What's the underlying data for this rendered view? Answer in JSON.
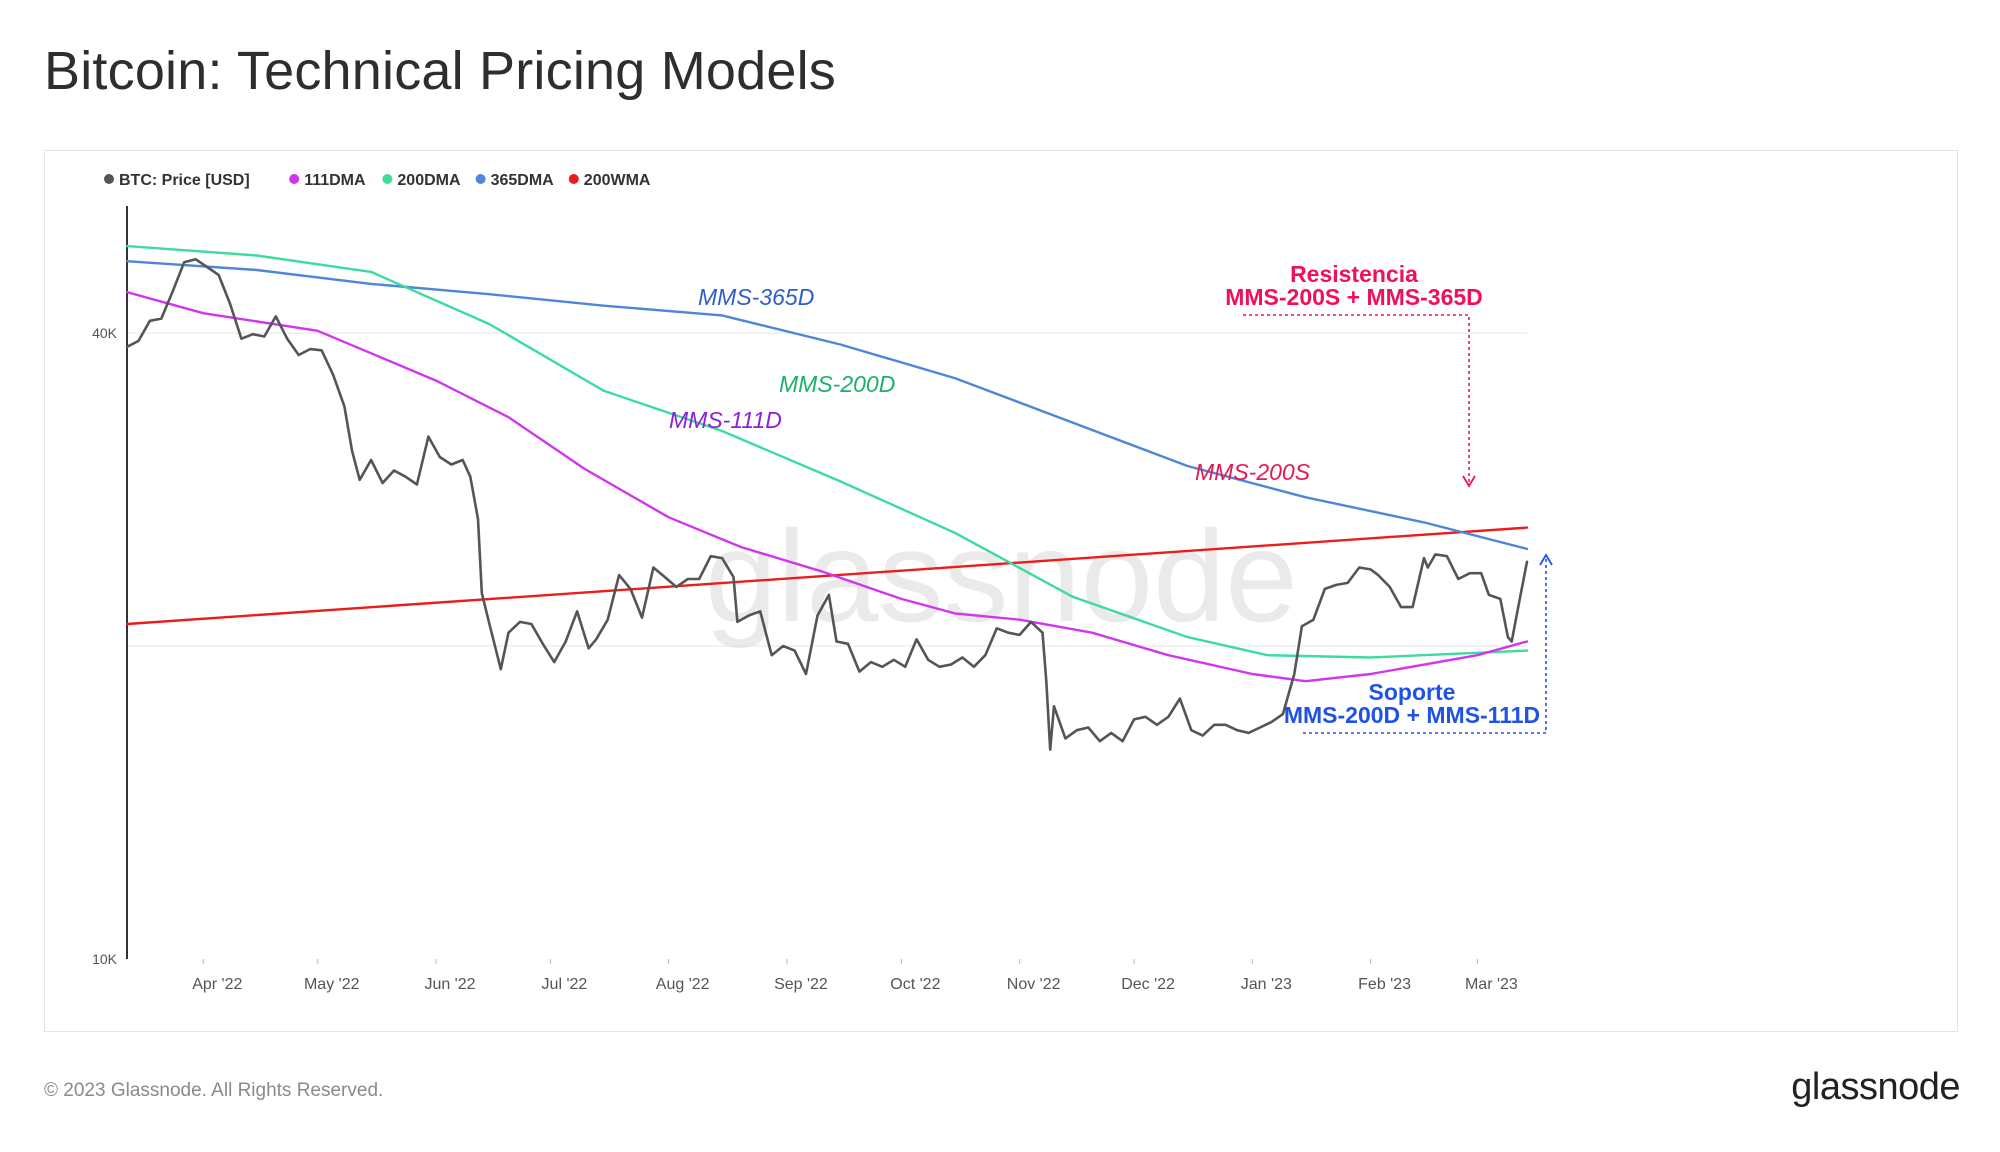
{
  "page": {
    "title": "Bitcoin: Technical Pricing Models",
    "copyright": "© 2023 Glassnode. All Rights Reserved.",
    "logo": "glassnode",
    "watermark": "glassnode"
  },
  "chart_data": {
    "type": "line",
    "title": "Bitcoin: Technical Pricing Models",
    "y_scale": "log",
    "ylim": [
      10000,
      53000
    ],
    "y_ticks": [
      {
        "value": 40000,
        "label": "40K"
      },
      {
        "value": 10000,
        "label": "10K"
      }
    ],
    "y_gridlines": [
      40000,
      20000
    ],
    "x_ticks": [
      "Apr '22",
      "May '22",
      "Jun '22",
      "Jul '22",
      "Aug '22",
      "Sep '22",
      "Oct '22",
      "Nov '22",
      "Dec '22",
      "Jan '23",
      "Feb '23",
      "Mar '23"
    ],
    "x_range": [
      "2022-03-12",
      "2023-03-14"
    ],
    "legend": {
      "placement": "top-left",
      "items": [
        {
          "label": "BTC: Price [USD]",
          "color": "#555555"
        },
        {
          "label": "111DMA",
          "color": "#d136ee"
        },
        {
          "label": "200DMA",
          "color": "#3ddb9c"
        },
        {
          "label": "365DMA",
          "color": "#4f86d8"
        },
        {
          "label": "200WMA",
          "color": "#ee1b1b"
        }
      ]
    },
    "series": [
      {
        "name": "BTC: Price [USD]",
        "color": "#555555",
        "points": [
          [
            "2022-03-12",
            38800
          ],
          [
            "2022-03-15",
            39300
          ],
          [
            "2022-03-18",
            41100
          ],
          [
            "2022-03-21",
            41300
          ],
          [
            "2022-03-24",
            43900
          ],
          [
            "2022-03-27",
            46800
          ],
          [
            "2022-03-30",
            47100
          ],
          [
            "2022-04-02",
            46300
          ],
          [
            "2022-04-05",
            45500
          ],
          [
            "2022-04-08",
            42700
          ],
          [
            "2022-04-11",
            39500
          ],
          [
            "2022-04-14",
            39900
          ],
          [
            "2022-04-17",
            39700
          ],
          [
            "2022-04-20",
            41500
          ],
          [
            "2022-04-23",
            39500
          ],
          [
            "2022-04-26",
            38100
          ],
          [
            "2022-04-29",
            38600
          ],
          [
            "2022-05-02",
            38500
          ],
          [
            "2022-05-05",
            36500
          ],
          [
            "2022-05-08",
            34000
          ],
          [
            "2022-05-10",
            30800
          ],
          [
            "2022-05-12",
            28900
          ],
          [
            "2022-05-15",
            30200
          ],
          [
            "2022-05-18",
            28700
          ],
          [
            "2022-05-21",
            29500
          ],
          [
            "2022-05-24",
            29100
          ],
          [
            "2022-05-27",
            28600
          ],
          [
            "2022-05-30",
            31800
          ],
          [
            "2022-06-02",
            30400
          ],
          [
            "2022-06-05",
            29900
          ],
          [
            "2022-06-08",
            30200
          ],
          [
            "2022-06-10",
            29100
          ],
          [
            "2022-06-12",
            26500
          ],
          [
            "2022-06-13",
            22500
          ],
          [
            "2022-06-15",
            21000
          ],
          [
            "2022-06-18",
            19000
          ],
          [
            "2022-06-20",
            20600
          ],
          [
            "2022-06-23",
            21100
          ],
          [
            "2022-06-26",
            21000
          ],
          [
            "2022-06-29",
            20100
          ],
          [
            "2022-07-02",
            19300
          ],
          [
            "2022-07-05",
            20200
          ],
          [
            "2022-07-08",
            21600
          ],
          [
            "2022-07-11",
            19900
          ],
          [
            "2022-07-13",
            20300
          ],
          [
            "2022-07-16",
            21200
          ],
          [
            "2022-07-19",
            23400
          ],
          [
            "2022-07-22",
            22700
          ],
          [
            "2022-07-25",
            21300
          ],
          [
            "2022-07-28",
            23800
          ],
          [
            "2022-07-31",
            23300
          ],
          [
            "2022-08-03",
            22800
          ],
          [
            "2022-08-06",
            23200
          ],
          [
            "2022-08-09",
            23200
          ],
          [
            "2022-08-12",
            24400
          ],
          [
            "2022-08-15",
            24300
          ],
          [
            "2022-08-18",
            23300
          ],
          [
            "2022-08-19",
            21100
          ],
          [
            "2022-08-22",
            21400
          ],
          [
            "2022-08-25",
            21600
          ],
          [
            "2022-08-28",
            19600
          ],
          [
            "2022-08-31",
            20000
          ],
          [
            "2022-09-03",
            19800
          ],
          [
            "2022-09-06",
            18800
          ],
          [
            "2022-09-09",
            21400
          ],
          [
            "2022-09-12",
            22400
          ],
          [
            "2022-09-14",
            20200
          ],
          [
            "2022-09-17",
            20100
          ],
          [
            "2022-09-20",
            18900
          ],
          [
            "2022-09-23",
            19300
          ],
          [
            "2022-09-26",
            19100
          ],
          [
            "2022-09-29",
            19400
          ],
          [
            "2022-10-02",
            19100
          ],
          [
            "2022-10-05",
            20300
          ],
          [
            "2022-10-08",
            19400
          ],
          [
            "2022-10-11",
            19100
          ],
          [
            "2022-10-14",
            19200
          ],
          [
            "2022-10-17",
            19500
          ],
          [
            "2022-10-20",
            19100
          ],
          [
            "2022-10-23",
            19600
          ],
          [
            "2022-10-26",
            20800
          ],
          [
            "2022-10-29",
            20600
          ],
          [
            "2022-11-01",
            20500
          ],
          [
            "2022-11-04",
            21100
          ],
          [
            "2022-11-07",
            20600
          ],
          [
            "2022-11-08",
            18500
          ],
          [
            "2022-11-09",
            15900
          ],
          [
            "2022-11-10",
            17500
          ],
          [
            "2022-11-13",
            16300
          ],
          [
            "2022-11-16",
            16600
          ],
          [
            "2022-11-19",
            16700
          ],
          [
            "2022-11-22",
            16200
          ],
          [
            "2022-11-25",
            16500
          ],
          [
            "2022-11-28",
            16200
          ],
          [
            "2022-12-01",
            17000
          ],
          [
            "2022-12-04",
            17100
          ],
          [
            "2022-12-07",
            16800
          ],
          [
            "2022-12-10",
            17100
          ],
          [
            "2022-12-13",
            17800
          ],
          [
            "2022-12-16",
            16600
          ],
          [
            "2022-12-19",
            16400
          ],
          [
            "2022-12-22",
            16800
          ],
          [
            "2022-12-25",
            16800
          ],
          [
            "2022-12-28",
            16600
          ],
          [
            "2022-12-31",
            16500
          ],
          [
            "2023-01-03",
            16700
          ],
          [
            "2023-01-06",
            16900
          ],
          [
            "2023-01-09",
            17200
          ],
          [
            "2023-01-12",
            18800
          ],
          [
            "2023-01-14",
            20900
          ],
          [
            "2023-01-17",
            21200
          ],
          [
            "2023-01-20",
            22700
          ],
          [
            "2023-01-23",
            22900
          ],
          [
            "2023-01-26",
            23000
          ],
          [
            "2023-01-29",
            23800
          ],
          [
            "2023-02-01",
            23700
          ],
          [
            "2023-02-03",
            23400
          ],
          [
            "2023-02-06",
            22800
          ],
          [
            "2023-02-09",
            21800
          ],
          [
            "2023-02-12",
            21800
          ],
          [
            "2023-02-15",
            24300
          ],
          [
            "2023-02-16",
            23800
          ],
          [
            "2023-02-18",
            24500
          ],
          [
            "2023-02-21",
            24400
          ],
          [
            "2023-02-24",
            23200
          ],
          [
            "2023-02-27",
            23500
          ],
          [
            "2023-03-02",
            23500
          ],
          [
            "2023-03-04",
            22400
          ],
          [
            "2023-03-07",
            22200
          ],
          [
            "2023-03-09",
            20400
          ],
          [
            "2023-03-10",
            20200
          ],
          [
            "2023-03-12",
            22100
          ],
          [
            "2023-03-14",
            24100
          ]
        ]
      },
      {
        "name": "111DMA",
        "color": "#d136ee",
        "points": [
          [
            "2022-03-12",
            43800
          ],
          [
            "2022-04-01",
            41800
          ],
          [
            "2022-05-01",
            40200
          ],
          [
            "2022-06-01",
            36000
          ],
          [
            "2022-06-20",
            33200
          ],
          [
            "2022-07-10",
            29600
          ],
          [
            "2022-08-01",
            26600
          ],
          [
            "2022-08-20",
            24900
          ],
          [
            "2022-09-10",
            23600
          ],
          [
            "2022-10-01",
            22200
          ],
          [
            "2022-10-15",
            21500
          ],
          [
            "2022-11-01",
            21200
          ],
          [
            "2022-11-20",
            20600
          ],
          [
            "2022-12-10",
            19600
          ],
          [
            "2023-01-01",
            18800
          ],
          [
            "2023-01-15",
            18500
          ],
          [
            "2023-02-01",
            18800
          ],
          [
            "2023-03-01",
            19600
          ],
          [
            "2023-03-14",
            20200
          ]
        ]
      },
      {
        "name": "200DMA",
        "color": "#3ddb9c",
        "points": [
          [
            "2022-03-12",
            48500
          ],
          [
            "2022-04-15",
            47500
          ],
          [
            "2022-05-15",
            45800
          ],
          [
            "2022-06-15",
            40800
          ],
          [
            "2022-07-15",
            35200
          ],
          [
            "2022-08-15",
            32200
          ],
          [
            "2022-09-15",
            28800
          ],
          [
            "2022-10-15",
            25700
          ],
          [
            "2022-11-15",
            22300
          ],
          [
            "2022-12-15",
            20400
          ],
          [
            "2023-01-05",
            19600
          ],
          [
            "2023-02-01",
            19500
          ],
          [
            "2023-03-14",
            19800
          ]
        ]
      },
      {
        "name": "365DMA",
        "color": "#4f86d8",
        "points": [
          [
            "2022-03-12",
            46900
          ],
          [
            "2022-04-15",
            46000
          ],
          [
            "2022-05-15",
            44600
          ],
          [
            "2022-06-15",
            43600
          ],
          [
            "2022-07-15",
            42500
          ],
          [
            "2022-08-15",
            41600
          ],
          [
            "2022-09-15",
            39000
          ],
          [
            "2022-10-15",
            36200
          ],
          [
            "2022-11-15",
            32800
          ],
          [
            "2022-12-15",
            29800
          ],
          [
            "2023-01-15",
            27800
          ],
          [
            "2023-02-15",
            26300
          ],
          [
            "2023-03-14",
            24800
          ]
        ]
      },
      {
        "name": "200WMA",
        "color": "#ee1b1b",
        "points": [
          [
            "2022-03-12",
            21000
          ],
          [
            "2023-03-14",
            26000
          ]
        ]
      }
    ],
    "annotations": {
      "model_labels": [
        {
          "text": "MMS-365D",
          "color": "#2d5ecf"
        },
        {
          "text": "MMS-200D",
          "color": "#1daf6f"
        },
        {
          "text": "MMS-111D",
          "color": "#8b22d9"
        },
        {
          "text": "MMS-200S",
          "color": "#e21a55"
        }
      ],
      "resistance": {
        "title": "Resistencia",
        "subtitle": "MMS-200S + MMS-365D",
        "color": "#f0105a"
      },
      "support": {
        "title": "Soporte",
        "subtitle": "MMS-200D + MMS-111D",
        "color": "#1f53e6"
      }
    }
  }
}
